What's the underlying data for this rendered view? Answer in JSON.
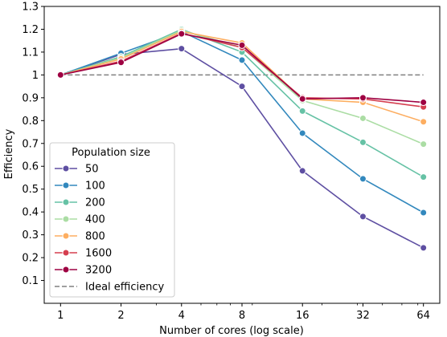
{
  "chart_data": {
    "type": "line",
    "xlabel": "Number of cores (log scale)",
    "ylabel": "Efficiency",
    "xscale": "log2",
    "x": [
      1,
      2,
      4,
      8,
      16,
      32,
      64
    ],
    "x_tick_labels": [
      "1",
      "2",
      "4",
      "8",
      "16",
      "32",
      "64"
    ],
    "ylim": [
      0,
      1.3
    ],
    "y_ticks": [
      0.1,
      0.2,
      0.3,
      0.4,
      0.5,
      0.6,
      0.7,
      0.8,
      0.9,
      1,
      1.1,
      1.2,
      1.3
    ],
    "y_tick_labels": [
      "0.1",
      "0.2",
      "0.3",
      "0.4",
      "0.5",
      "0.6",
      "0.7",
      "0.8",
      "0.9",
      "1",
      "1.1",
      "1.2",
      "1.3"
    ],
    "grid": false,
    "legend_title": "Population size",
    "legend_position": "lower-left",
    "series": [
      {
        "name": "50",
        "color": "#5e4fa2",
        "values": [
          1.0,
          1.09,
          1.115,
          0.95,
          0.58,
          0.38,
          0.243
        ]
      },
      {
        "name": "100",
        "color": "#3288bd",
        "values": [
          1.0,
          1.095,
          1.19,
          1.065,
          0.745,
          0.545,
          0.397
        ]
      },
      {
        "name": "200",
        "color": "#66c2a5",
        "values": [
          1.0,
          1.08,
          1.2,
          1.1,
          0.842,
          0.705,
          0.553
        ]
      },
      {
        "name": "400",
        "color": "#abdda4",
        "values": [
          1.0,
          1.075,
          1.195,
          1.12,
          0.888,
          0.81,
          0.697
        ]
      },
      {
        "name": "800",
        "color": "#fdae61",
        "values": [
          1.0,
          1.07,
          1.19,
          1.14,
          0.895,
          0.88,
          0.795
        ]
      },
      {
        "name": "1600",
        "color": "#d53e4f",
        "values": [
          1.0,
          1.06,
          1.183,
          1.12,
          0.9,
          0.895,
          0.86
        ]
      },
      {
        "name": "3200",
        "color": "#9e0142",
        "values": [
          1.0,
          1.055,
          1.18,
          1.13,
          0.895,
          0.9,
          0.88
        ]
      }
    ],
    "reference_line": {
      "name": "Ideal efficiency",
      "value": 1,
      "color": "#808080"
    }
  }
}
